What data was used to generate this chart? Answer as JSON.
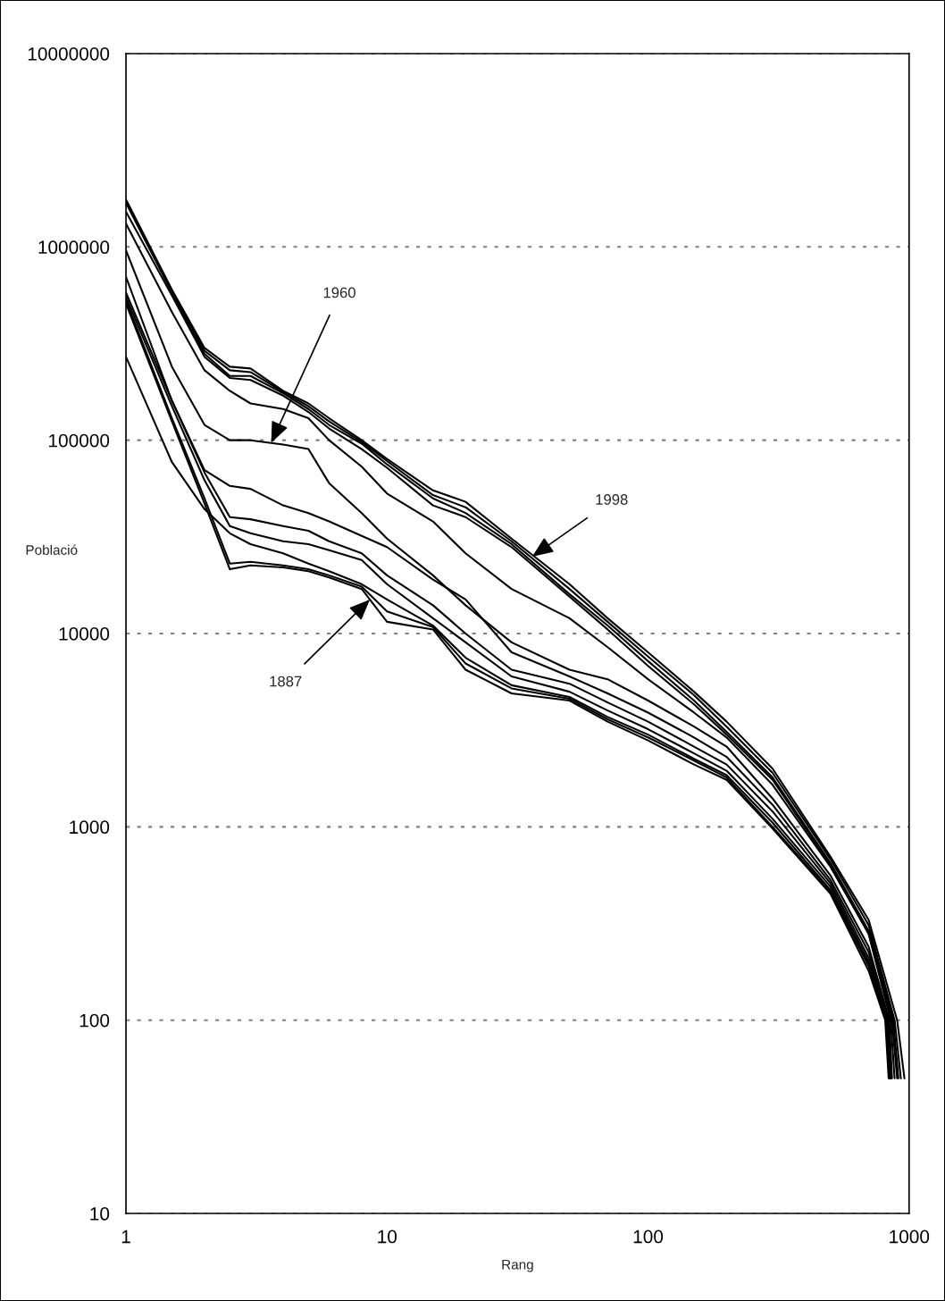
{
  "chart_data": {
    "type": "line",
    "xlabel": "Rang",
    "ylabel": "Població",
    "log": "xy",
    "grid": "y",
    "marker": "none",
    "line_style": "solid",
    "xlim": [
      1,
      1000
    ],
    "xticks": [
      1,
      10,
      100,
      1000
    ],
    "ylim": [
      10,
      10000000
    ],
    "yticks": [
      10,
      100,
      1000,
      10000,
      100000,
      1000000,
      10000000
    ],
    "annotations": [
      {
        "text": "1960",
        "x": 3.6,
        "y": 97000
      },
      {
        "text": "1998",
        "x": 36,
        "y": 25000
      },
      {
        "text": "1887",
        "x": 8.6,
        "y": 15000
      }
    ],
    "series": [
      {
        "color": "#000000",
        "x": [
          1,
          1.5,
          2,
          2.5,
          3,
          4,
          5,
          6,
          8,
          10,
          15,
          20,
          30,
          50,
          70,
          100,
          150,
          200,
          300,
          500,
          700,
          900,
          960
        ],
        "values": [
          1760000,
          600000,
          300000,
          240000,
          235000,
          180000,
          155000,
          130000,
          100000,
          80000,
          55000,
          48000,
          31000,
          18000,
          12000,
          8000,
          5000,
          3500,
          2000,
          700,
          330,
          100,
          50
        ]
      },
      {
        "color": "#000000",
        "x": [
          1,
          1.5,
          2,
          2.5,
          3,
          4,
          5,
          6,
          8,
          10,
          15,
          20,
          30,
          50,
          70,
          100,
          150,
          200,
          300,
          500,
          700,
          880,
          930
        ],
        "values": [
          1720000,
          590000,
          290000,
          230000,
          225000,
          178000,
          150000,
          125000,
          98000,
          78000,
          52000,
          45000,
          30000,
          17000,
          11500,
          7600,
          4800,
          3300,
          1900,
          680,
          310,
          100,
          50
        ]
      },
      {
        "color": "#000000",
        "x": [
          1,
          1.5,
          2,
          2.5,
          3,
          4,
          5,
          6,
          8,
          10,
          15,
          20,
          30,
          50,
          70,
          100,
          150,
          200,
          300,
          500,
          700,
          870,
          910
        ],
        "values": [
          1690000,
          580000,
          280000,
          215000,
          215000,
          175000,
          145000,
          120000,
          96000,
          75000,
          50000,
          42000,
          29000,
          16000,
          11000,
          7200,
          4500,
          3100,
          1800,
          650,
          290,
          100,
          50
        ]
      },
      {
        "color": "#000000",
        "x": [
          1,
          1.5,
          2,
          2.5,
          3,
          4,
          5,
          6,
          8,
          10,
          15,
          20,
          30,
          50,
          70,
          100,
          150,
          200,
          300,
          500,
          700,
          860,
          900
        ],
        "values": [
          1520000,
          560000,
          270000,
          210000,
          205000,
          170000,
          140000,
          115000,
          90000,
          72000,
          46000,
          40000,
          28000,
          15500,
          10500,
          6800,
          4300,
          3000,
          1750,
          630,
          280,
          100,
          50
        ]
      },
      {
        "color": "#000000",
        "x": [
          1,
          1.5,
          2,
          2.5,
          3,
          4,
          5,
          6,
          8,
          10,
          15,
          20,
          30,
          50,
          70,
          100,
          150,
          200,
          300,
          500,
          700,
          850,
          880
        ],
        "values": [
          1320000,
          460000,
          230000,
          180000,
          155000,
          145000,
          130000,
          100000,
          73000,
          53000,
          38000,
          26000,
          17000,
          12000,
          8500,
          5800,
          3900,
          2900,
          1650,
          620,
          280,
          100,
          50
        ]
      },
      {
        "color": "#000000",
        "x": [
          1,
          1.5,
          2,
          2.5,
          3,
          4,
          5,
          6,
          8,
          10,
          15,
          20,
          30,
          50,
          70,
          100,
          150,
          200,
          300,
          500,
          700,
          840,
          860
        ],
        "values": [
          960000,
          240000,
          120000,
          100000,
          100000,
          95000,
          90000,
          60000,
          42000,
          31000,
          20000,
          14000,
          9000,
          6500,
          5800,
          4500,
          3300,
          2600,
          1400,
          560,
          240,
          100,
          50
        ]
      },
      {
        "color": "#000000",
        "x": [
          1,
          1.5,
          2,
          2.5,
          3,
          4,
          5,
          6,
          8,
          10,
          15,
          20,
          30,
          50,
          70,
          100,
          150,
          200,
          300,
          500,
          700,
          830,
          855
        ],
        "values": [
          700000,
          160000,
          70000,
          58000,
          56000,
          46000,
          42000,
          38000,
          32000,
          28000,
          19000,
          15000,
          8000,
          6000,
          4900,
          3900,
          2900,
          2300,
          1300,
          530,
          225,
          100,
          50
        ]
      },
      {
        "color": "#000000",
        "x": [
          1,
          1.5,
          2,
          2.5,
          3,
          4,
          5,
          6,
          8,
          10,
          15,
          20,
          30,
          50,
          70,
          100,
          150,
          200,
          300,
          500,
          700,
          825,
          850
        ],
        "values": [
          580000,
          160000,
          68000,
          40000,
          39000,
          36000,
          34000,
          30000,
          26000,
          20000,
          14000,
          10000,
          6500,
          5500,
          4400,
          3500,
          2600,
          2100,
          1200,
          510,
          210,
          100,
          50
        ]
      },
      {
        "color": "#000000",
        "x": [
          1,
          1.5,
          2,
          2.5,
          3,
          4,
          5,
          6,
          8,
          10,
          15,
          20,
          30,
          50,
          70,
          100,
          150,
          200,
          300,
          500,
          700,
          820,
          845
        ],
        "values": [
          550000,
          150000,
          62000,
          36000,
          33000,
          30000,
          29000,
          27000,
          24000,
          18000,
          12000,
          9000,
          6000,
          5000,
          4000,
          3200,
          2400,
          1950,
          1100,
          490,
          200,
          100,
          50
        ]
      },
      {
        "color": "#000000",
        "x": [
          1,
          1.5,
          2,
          2.5,
          3,
          4,
          5,
          6,
          8,
          10,
          15,
          20,
          30,
          50,
          70,
          100,
          150,
          200,
          300,
          500,
          700,
          815,
          840
        ],
        "values": [
          530000,
          130000,
          50000,
          23000,
          23500,
          22500,
          21500,
          20000,
          17500,
          13000,
          10800,
          7000,
          5200,
          4600,
          3600,
          2900,
          2200,
          1800,
          1000,
          460,
          190,
          100,
          50
        ]
      },
      {
        "color": "#000000",
        "x": [
          1,
          1.5,
          2,
          2.5,
          3,
          4,
          5,
          6,
          8,
          10,
          15,
          20,
          30,
          50,
          70,
          100,
          150,
          200,
          300,
          500,
          700,
          810,
          835
        ],
        "values": [
          510000,
          125000,
          47000,
          21500,
          22500,
          22000,
          21000,
          19500,
          17000,
          11500,
          10500,
          6500,
          4900,
          4500,
          3500,
          2800,
          2100,
          1750,
          980,
          450,
          180,
          100,
          50
        ]
      },
      {
        "color": "#000000",
        "x": [
          1,
          1.5,
          2,
          2.5,
          3,
          4,
          5,
          6,
          8,
          10,
          15,
          20,
          30,
          50,
          70,
          100,
          150,
          200,
          300,
          500,
          700,
          820,
          845
        ],
        "values": [
          270000,
          77000,
          44000,
          33000,
          29000,
          26000,
          23000,
          21000,
          18000,
          15000,
          11000,
          7500,
          5400,
          4700,
          3700,
          3000,
          2250,
          1850,
          1050,
          470,
          195,
          100,
          50
        ]
      }
    ]
  }
}
